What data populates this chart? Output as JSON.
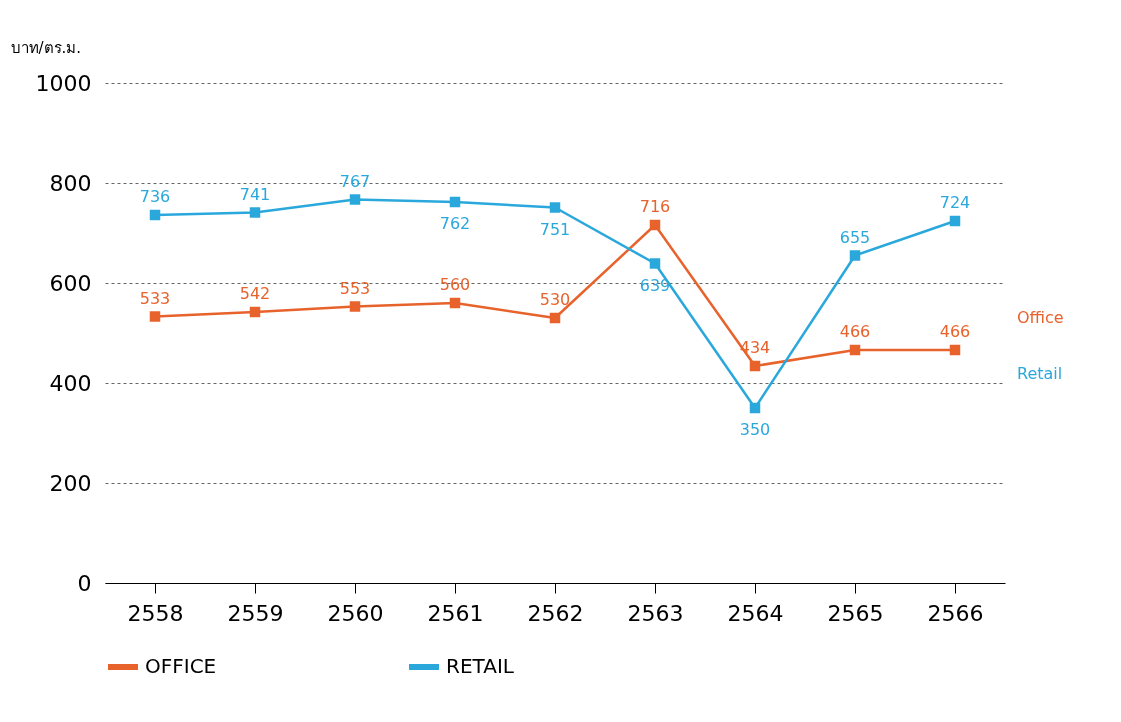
{
  "chart_data": {
    "type": "line",
    "ylabel": "บาท/ตร.ม.",
    "categories": [
      "2558",
      "2559",
      "2560",
      "2561",
      "2562",
      "2563",
      "2564",
      "2565",
      "2566"
    ],
    "series": [
      {
        "name": "OFFICE",
        "color": "#e8622c",
        "values": [
          533,
          542,
          553,
          560,
          530,
          716,
          434,
          466,
          466
        ]
      },
      {
        "name": "RETAIL",
        "color": "#2aa8dc",
        "values": [
          736,
          741,
          767,
          762,
          751,
          639,
          350,
          655,
          724
        ]
      }
    ],
    "ylim": [
      0,
      1000
    ],
    "yticks": [
      0,
      200,
      400,
      600,
      800,
      1000
    ],
    "grid": "y",
    "line_style": "solid",
    "marker": "square",
    "legend": "bottom",
    "data_labels": true,
    "annotations": [
      "Office",
      "Retail"
    ]
  }
}
